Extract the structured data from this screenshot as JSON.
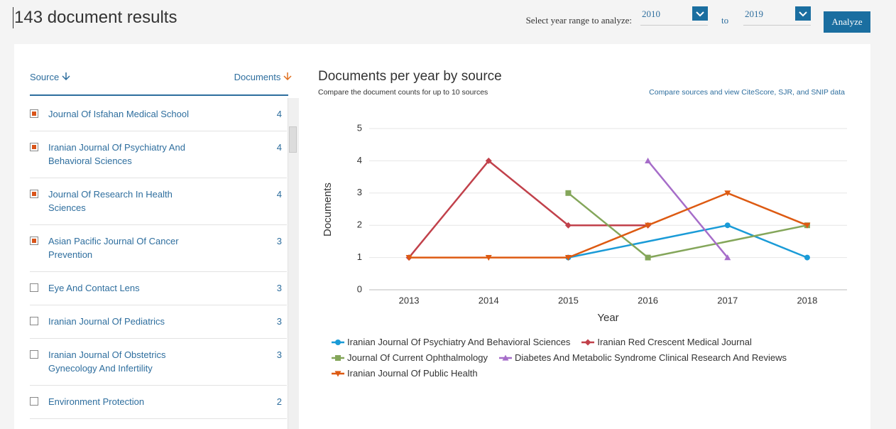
{
  "header": {
    "title": "143 document results",
    "year_label": "Select year range to analyze:",
    "from_year": "2010",
    "to_label": "to",
    "to_year": "2019",
    "button": "Analyze"
  },
  "sources": {
    "source_header": "Source",
    "documents_header": "Documents",
    "items": [
      {
        "name": "Journal Of Isfahan Medical School",
        "count": 4,
        "checked": true
      },
      {
        "name": "Iranian Journal Of Psychiatry And Behavioral Sciences",
        "count": 4,
        "checked": true
      },
      {
        "name": "Journal Of Research In Health Sciences",
        "count": 4,
        "checked": true
      },
      {
        "name": "Asian Pacific Journal Of Cancer Prevention",
        "count": 3,
        "checked": true
      },
      {
        "name": "Eye And Contact Lens",
        "count": 3,
        "checked": false
      },
      {
        "name": "Iranian Journal Of Pediatrics",
        "count": 3,
        "checked": false
      },
      {
        "name": "Iranian Journal Of Obstetrics Gynecology And Infertility",
        "count": 3,
        "checked": false
      },
      {
        "name": "Environment Protection",
        "count": 2,
        "checked": false
      }
    ]
  },
  "chart_data": {
    "type": "line",
    "title": "Documents per year by source",
    "subtitle": "Compare the document counts for up to 10 sources",
    "link": "Compare sources and view CiteScore, SJR, and SNIP data",
    "x_label": "Year",
    "y_label": "Documents",
    "xlim": [
      2012.5,
      2018.5
    ],
    "xticks": [
      2013,
      2014,
      2015,
      2016,
      2017,
      2018
    ],
    "ylim": [
      0,
      5
    ],
    "yticks": [
      0,
      1,
      2,
      3,
      4,
      5
    ],
    "grid": true,
    "series": [
      {
        "name": "Iranian Journal Of Psychiatry And Behavioral Sciences",
        "color": "#1a9bd7",
        "marker": "circle",
        "x": [
          2015,
          2017,
          2018
        ],
        "values": [
          1,
          2,
          1
        ]
      },
      {
        "name": "Iranian Red Crescent Medical Journal",
        "color": "#c1414b",
        "marker": "diamond",
        "x": [
          2013,
          2014,
          2015,
          2016
        ],
        "values": [
          1,
          4,
          2,
          2
        ]
      },
      {
        "name": "Journal Of Current Ophthalmology",
        "color": "#84a65a",
        "marker": "square",
        "x": [
          2015,
          2016,
          2018
        ],
        "values": [
          3,
          1,
          2
        ]
      },
      {
        "name": "Diabetes And Metabolic Syndrome Clinical Research And Reviews",
        "color": "#a66dc9",
        "marker": "triangle",
        "x": [
          2016,
          2017
        ],
        "values": [
          4,
          1
        ]
      },
      {
        "name": "Iranian Journal Of Public Health",
        "color": "#dd5a12",
        "marker": "triangle-down",
        "x": [
          2013,
          2014,
          2015,
          2016,
          2017,
          2018
        ],
        "values": [
          1,
          1,
          1,
          2,
          3,
          2
        ]
      }
    ]
  }
}
